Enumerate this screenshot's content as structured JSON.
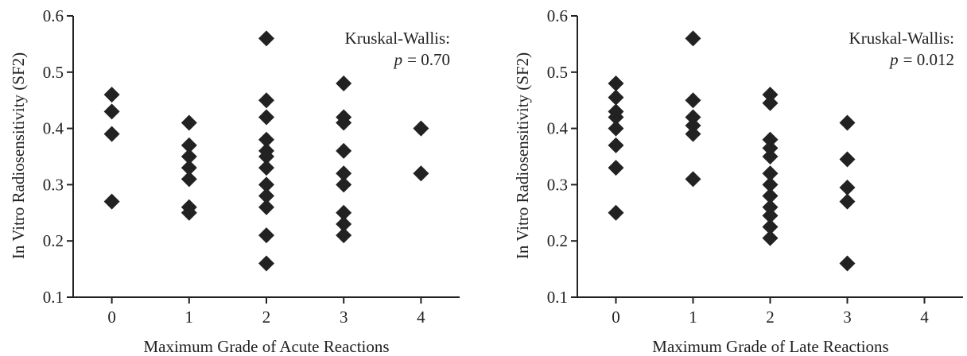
{
  "colors": {
    "marker": "#222222",
    "axis": "#222222",
    "background": "#ffffff"
  },
  "chart_data": [
    {
      "type": "scatter",
      "marker": "diamond",
      "xlabel": "Maximum Grade of Acute Reactions",
      "ylabel": "In Vitro Radiosensitivity (SF2)",
      "xlim": [
        -0.5,
        4.5
      ],
      "ylim": [
        0.1,
        0.6
      ],
      "xticks": [
        "0",
        "1",
        "2",
        "3",
        "4"
      ],
      "yticks": [
        "0.1",
        "0.2",
        "0.3",
        "0.4",
        "0.5",
        "0.6"
      ],
      "grid": false,
      "annotation": {
        "test": "Kruskal-Wallis:",
        "p_label": "p",
        "p_value": "= 0.70"
      },
      "points": [
        {
          "x": 0,
          "y": 0.46
        },
        {
          "x": 0,
          "y": 0.43
        },
        {
          "x": 0,
          "y": 0.39
        },
        {
          "x": 0,
          "y": 0.27
        },
        {
          "x": 1,
          "y": 0.41
        },
        {
          "x": 1,
          "y": 0.37
        },
        {
          "x": 1,
          "y": 0.35
        },
        {
          "x": 1,
          "y": 0.33
        },
        {
          "x": 1,
          "y": 0.31
        },
        {
          "x": 1,
          "y": 0.26
        },
        {
          "x": 1,
          "y": 0.25
        },
        {
          "x": 2,
          "y": 0.56
        },
        {
          "x": 2,
          "y": 0.45
        },
        {
          "x": 2,
          "y": 0.42
        },
        {
          "x": 2,
          "y": 0.38
        },
        {
          "x": 2,
          "y": 0.36
        },
        {
          "x": 2,
          "y": 0.35
        },
        {
          "x": 2,
          "y": 0.33
        },
        {
          "x": 2,
          "y": 0.3
        },
        {
          "x": 2,
          "y": 0.28
        },
        {
          "x": 2,
          "y": 0.26
        },
        {
          "x": 2,
          "y": 0.21
        },
        {
          "x": 2,
          "y": 0.16
        },
        {
          "x": 3,
          "y": 0.48
        },
        {
          "x": 3,
          "y": 0.42
        },
        {
          "x": 3,
          "y": 0.41
        },
        {
          "x": 3,
          "y": 0.36
        },
        {
          "x": 3,
          "y": 0.32
        },
        {
          "x": 3,
          "y": 0.3
        },
        {
          "x": 3,
          "y": 0.25
        },
        {
          "x": 3,
          "y": 0.23
        },
        {
          "x": 3,
          "y": 0.21
        },
        {
          "x": 4,
          "y": 0.4
        },
        {
          "x": 4,
          "y": 0.32
        }
      ]
    },
    {
      "type": "scatter",
      "marker": "diamond",
      "xlabel": "Maximum Grade of Late Reactions",
      "ylabel": "In Vitro Radiosensitivity (SF2)",
      "xlim": [
        -0.5,
        4.5
      ],
      "ylim": [
        0.1,
        0.6
      ],
      "xticks": [
        "0",
        "1",
        "2",
        "3",
        "4"
      ],
      "yticks": [
        "0.1",
        "0.2",
        "0.3",
        "0.4",
        "0.5",
        "0.6"
      ],
      "grid": false,
      "annotation": {
        "test": "Kruskal-Wallis:",
        "p_label": "p",
        "p_value": "= 0.012"
      },
      "points": [
        {
          "x": 0,
          "y": 0.48
        },
        {
          "x": 0,
          "y": 0.455
        },
        {
          "x": 0,
          "y": 0.43
        },
        {
          "x": 0,
          "y": 0.42
        },
        {
          "x": 0,
          "y": 0.4
        },
        {
          "x": 0,
          "y": 0.37
        },
        {
          "x": 0,
          "y": 0.33
        },
        {
          "x": 0,
          "y": 0.25
        },
        {
          "x": 1,
          "y": 0.56
        },
        {
          "x": 1,
          "y": 0.45
        },
        {
          "x": 1,
          "y": 0.42
        },
        {
          "x": 1,
          "y": 0.405
        },
        {
          "x": 1,
          "y": 0.39
        },
        {
          "x": 1,
          "y": 0.31
        },
        {
          "x": 2,
          "y": 0.46
        },
        {
          "x": 2,
          "y": 0.445
        },
        {
          "x": 2,
          "y": 0.38
        },
        {
          "x": 2,
          "y": 0.365
        },
        {
          "x": 2,
          "y": 0.35
        },
        {
          "x": 2,
          "y": 0.32
        },
        {
          "x": 2,
          "y": 0.3
        },
        {
          "x": 2,
          "y": 0.28
        },
        {
          "x": 2,
          "y": 0.26
        },
        {
          "x": 2,
          "y": 0.245
        },
        {
          "x": 2,
          "y": 0.225
        },
        {
          "x": 2,
          "y": 0.205
        },
        {
          "x": 3,
          "y": 0.41
        },
        {
          "x": 3,
          "y": 0.345
        },
        {
          "x": 3,
          "y": 0.295
        },
        {
          "x": 3,
          "y": 0.27
        },
        {
          "x": 3,
          "y": 0.16
        }
      ]
    }
  ]
}
